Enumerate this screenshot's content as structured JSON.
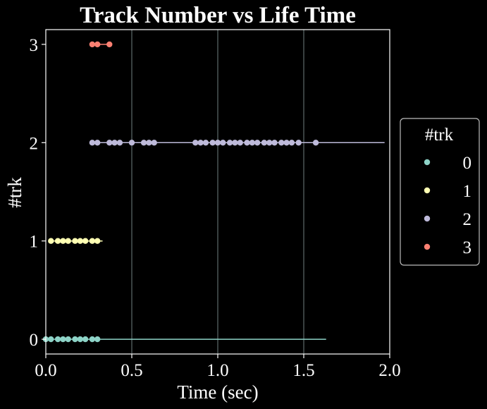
{
  "chart_data": {
    "type": "scatter",
    "title": "Track Number vs Life Time",
    "xlabel": "Time (sec)",
    "ylabel": "#trk",
    "xlim": [
      0.0,
      2.0
    ],
    "ylim": [
      -0.15,
      3.15
    ],
    "xticks": [
      0.0,
      0.5,
      1.0,
      1.5,
      2.0
    ],
    "xtick_labels": [
      "0.0",
      "0.5",
      "1.0",
      "1.5",
      "2.0"
    ],
    "yticks": [
      0,
      1,
      2,
      3
    ],
    "ytick_labels": [
      "0",
      "1",
      "2",
      "3"
    ],
    "grid": "vertical",
    "legend": {
      "title": "#trk",
      "placement": "outside-right"
    },
    "series": [
      {
        "name": "0",
        "color": "#8dd3c7",
        "y": 0,
        "line_x_end": 1.63,
        "x": [
          0.0,
          0.03,
          0.07,
          0.1,
          0.13,
          0.17,
          0.2,
          0.23,
          0.27,
          0.3
        ]
      },
      {
        "name": "1",
        "color": "#ffffb3",
        "y": 1,
        "line_x_end": 0.33,
        "x": [
          0.03,
          0.07,
          0.1,
          0.13,
          0.17,
          0.2,
          0.23,
          0.27,
          0.3
        ]
      },
      {
        "name": "2",
        "color": "#bebada",
        "y": 2,
        "line_x_end": 1.97,
        "x": [
          0.27,
          0.3,
          0.37,
          0.4,
          0.43,
          0.5,
          0.57,
          0.6,
          0.63,
          0.87,
          0.9,
          0.93,
          0.97,
          1.0,
          1.03,
          1.07,
          1.1,
          1.13,
          1.17,
          1.2,
          1.23,
          1.27,
          1.3,
          1.33,
          1.37,
          1.4,
          1.43,
          1.47,
          1.57
        ]
      },
      {
        "name": "3",
        "color": "#fb8072",
        "y": 3,
        "line_x_end": 0.37,
        "x": [
          0.27,
          0.3,
          0.37
        ]
      }
    ]
  }
}
